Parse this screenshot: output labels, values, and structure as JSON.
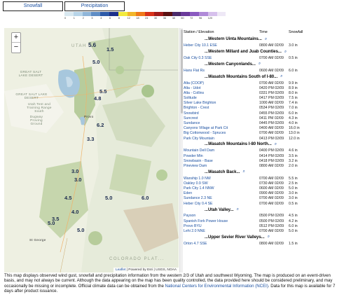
{
  "tabs": [
    {
      "label": "Snowfall"
    },
    {
      "label": "Precipitation"
    }
  ],
  "scale": {
    "colors": [
      "#d8e8f0",
      "#b7d4e8",
      "#8fb5d8",
      "#5e8cc4",
      "#2d5aa8",
      "#1b2e8a",
      "#f2ea3c",
      "#f2b62a",
      "#ef7a1a",
      "#d8321a",
      "#a01a1a",
      "#5a1010",
      "#4a2a6a",
      "#6a3a9a",
      "#8a5ac0",
      "#b08ad8",
      "#d6c0ec",
      "#eee8f6"
    ],
    "labels": [
      "0",
      "1",
      "2",
      "3",
      "4",
      "6",
      "8",
      "12",
      "18",
      "24",
      "30",
      "36",
      "48",
      "60",
      "72",
      "96",
      "120",
      ""
    ]
  },
  "map": {
    "zoom_in": "+",
    "zoom_out": "−",
    "labels": {
      "utah": "UTAH",
      "great_salt_lake": "GREAT SALT LAKE DESERT",
      "great_salt_lake_desert": "GREAT SALT LAKE DESERT",
      "colorado_plateau": "COLORADO PLAT...",
      "st_george": "St George",
      "provo": "Provo",
      "tooele": "Utah Test and Training Range South",
      "dugway": "Dugway Proving Ground"
    },
    "values": [
      "1.5",
      "5.6",
      "5.0",
      "5.5",
      "4.8",
      "6.2",
      "3.3",
      "3.0",
      "4.5",
      "5.0",
      "6.0",
      "4.0",
      "3.5",
      "5.0",
      "5.0",
      "3.0"
    ],
    "attribution": {
      "leaflet": "Leaflet",
      "rest": "| Powered by Esri | USGS, NOAA"
    }
  },
  "table": {
    "headers": {
      "station": "Station / Elevation",
      "time": "Time",
      "snowfall": "Snowfall"
    },
    "sections": [
      {
        "title": "...Western Uinta Mountains...",
        "rows": [
          {
            "station": "Heber City 10.1 ESE",
            "time": "0800 AM 02/09",
            "value": "3.0 in"
          }
        ]
      },
      {
        "title": "...Western Millard and Juab Counties...",
        "rows": [
          {
            "station": "Oak City 0.3 SSE",
            "time": "0700 AM 02/09",
            "value": "0.5 in"
          }
        ]
      },
      {
        "title": "...Western Canyonlands...",
        "rows": [
          {
            "station": "Hans Flat Rs",
            "time": "0600 AM 02/09",
            "value": "6.0 in"
          }
        ]
      },
      {
        "title": "...Wasatch Mountains South of I-80...",
        "rows": [
          {
            "station": "Alta (COOP)",
            "time": "0700 AM 02/09",
            "value": "9.9 in"
          },
          {
            "station": "Alta - Udot",
            "time": "0420 PM 02/09",
            "value": "8.9 in"
          },
          {
            "station": "Alta - Collins",
            "time": "0331 PM 02/09",
            "value": "8.0 in"
          },
          {
            "station": "Solitude",
            "time": "0417 PM 02/09",
            "value": "7.5 in"
          },
          {
            "station": "Silver Lake Brighton",
            "time": "1000 AM 02/09",
            "value": "7.4 in"
          },
          {
            "station": "Brighton - Crest",
            "time": "0534 PM 02/09",
            "value": "7.0 in"
          },
          {
            "station": "Snowbird",
            "time": "0455 PM 02/09",
            "value": "6.0 in"
          },
          {
            "station": "Suncrest",
            "time": "0411 PM 02/09",
            "value": "4.3 in"
          },
          {
            "station": "Sundance",
            "time": "0445 PM 02/09",
            "value": "4.0 in"
          },
          {
            "station": "Canyons Village at Park Cit",
            "time": "0400 AM 02/09",
            "value": "16.0 in"
          },
          {
            "station": "Big Cottonwood - Spruces",
            "time": "0700 AM 02/09",
            "value": "13.0 in"
          },
          {
            "station": "Park City Mountain",
            "time": "0413 PM 02/09",
            "value": "12.0 in"
          }
        ]
      },
      {
        "title": "...Wasatch Mountains I-80 North...",
        "rows": [
          {
            "station": "Mountain Dell Dam",
            "time": "0400 PM 02/09",
            "value": "4.6 in"
          },
          {
            "station": "Powder Mtn",
            "time": "0414 PM 02/09",
            "value": "3.5 in"
          },
          {
            "station": "Snowbasin - Base",
            "time": "0418 PM 02/09",
            "value": "3.2 in"
          },
          {
            "station": "Pineview Dam",
            "time": "0800 AM 02/09",
            "value": "2.0 in"
          }
        ]
      },
      {
        "title": "...Wasatch Back...",
        "rows": [
          {
            "station": "Wanship 1.0 NW",
            "time": "0700 AM 02/09",
            "value": "5.5 in"
          },
          {
            "station": "Oakley 0.9 SW",
            "time": "0730 AM 02/09",
            "value": "2.5 in"
          },
          {
            "station": "Park City 1.4 NNW",
            "time": "0600 AM 02/09",
            "value": "5.0 in"
          },
          {
            "station": "Eden",
            "time": "0900 AM 02/09",
            "value": "3.0 in"
          },
          {
            "station": "Sundance 2.3 NE",
            "time": "0700 AM 02/09",
            "value": "3.0 in"
          },
          {
            "station": "Heber City 0.4 SE",
            "time": "0700 AM 02/09",
            "value": "0.5 in"
          }
        ]
      },
      {
        "title": "...Utah Valley...",
        "rows": [
          {
            "station": "Payson",
            "time": "0500 PM 02/09",
            "value": "4.5 in"
          },
          {
            "station": "Spanish Fork Power House",
            "time": "0500 PM 02/09",
            "value": "4.2 in"
          },
          {
            "station": "Provo BYU",
            "time": "0512 PM 02/09",
            "value": "6.0 in"
          },
          {
            "station": "Lehi 2.0 NNE",
            "time": "0700 AM 02/09",
            "value": "5.0 in"
          }
        ]
      },
      {
        "title": "...Upper Sevier River Valleys...",
        "rows": [
          {
            "station": "Orton 4.7 SSE",
            "time": "0800 AM 02/09",
            "value": "1.5 in"
          }
        ]
      }
    ]
  },
  "description": {
    "text": "This map displays observed wind gust, snowfall and precipitation information from the western 2/3 of Utah and southwest Wyoming. The map is produced on an event-driven basis, and may not always be current. Although the data appearing on the map has been quality controlled, the data provided here should be considered preliminary, and may occasionally be missing or incomplete. Official climate data can be obtained from the",
    "link": "National Centers for Environmental Information (NCEI)",
    "tail": ". Data for this map is available for 7 days after product issuance."
  }
}
